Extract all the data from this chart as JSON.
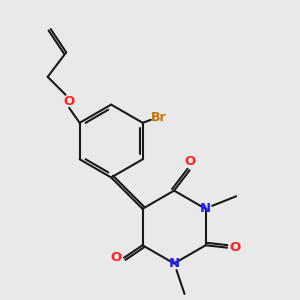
{
  "background_color": "#e9e9e9",
  "bond_color": "#1a1a1a",
  "oxygen_color": "#ff2020",
  "nitrogen_color": "#2020ff",
  "bromine_color": "#c87000",
  "lw": 1.5,
  "figsize": [
    3.0,
    3.0
  ],
  "dpi": 100,
  "xlim": [
    0,
    10
  ],
  "ylim": [
    0,
    10
  ]
}
